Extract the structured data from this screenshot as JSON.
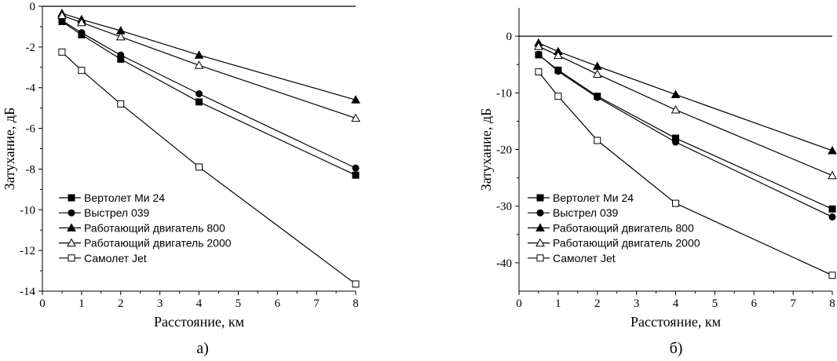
{
  "chart_data": [
    {
      "type": "line",
      "panel_label": "а)",
      "xlabel": "Расстояние, км",
      "ylabel": "Затухание, дБ",
      "xlim": [
        0,
        8
      ],
      "ylim": [
        -14,
        0
      ],
      "xticks": [
        "0",
        "1",
        "2",
        "3",
        "4",
        "5",
        "6",
        "7",
        "8"
      ],
      "yticks": [
        "0",
        "-2",
        "-4",
        "-6",
        "-8",
        "-10",
        "-12",
        "-14"
      ],
      "zero_line": true,
      "legend_position": "lower-left",
      "x": [
        0.5,
        1,
        2,
        4,
        8
      ],
      "series": [
        {
          "name": "Вертолет Ми 24",
          "marker": "filled-square",
          "values": [
            -0.75,
            -1.4,
            -2.6,
            -4.7,
            -8.3
          ]
        },
        {
          "name": "Выстрел 039",
          "marker": "filled-circle",
          "values": [
            -0.7,
            -1.3,
            -2.4,
            -4.3,
            -7.95
          ]
        },
        {
          "name": "Работающий двигатель 800",
          "marker": "filled-triangle",
          "values": [
            -0.35,
            -0.65,
            -1.2,
            -2.4,
            -4.6
          ]
        },
        {
          "name": "Работающий двигатель 2000",
          "marker": "open-triangle",
          "values": [
            -0.45,
            -0.8,
            -1.5,
            -2.9,
            -5.5
          ]
        },
        {
          "name": "Самолет Jet",
          "marker": "open-square",
          "values": [
            -2.25,
            -3.15,
            -4.8,
            -7.9,
            -13.65
          ]
        }
      ]
    },
    {
      "type": "line",
      "panel_label": "б)",
      "xlabel": "Расстояние, км",
      "ylabel": "Затухание, дБ",
      "xlim": [
        0,
        8
      ],
      "ylim": [
        -45,
        5
      ],
      "xticks": [
        "0",
        "1",
        "2",
        "3",
        "4",
        "5",
        "6",
        "7",
        "8"
      ],
      "yticks": [
        "0",
        "-10",
        "-20",
        "-30",
        "-40"
      ],
      "zero_line": true,
      "legend_position": "lower-left",
      "x": [
        0.5,
        1,
        2,
        4,
        8
      ],
      "series": [
        {
          "name": "Вертолет Ми 24",
          "marker": "filled-square",
          "values": [
            -3.3,
            -6.0,
            -10.6,
            -18.0,
            -30.5
          ]
        },
        {
          "name": "Выстрел 039",
          "marker": "filled-circle",
          "values": [
            -3.2,
            -6.2,
            -10.8,
            -18.7,
            -31.9
          ]
        },
        {
          "name": "Работающий двигатель 800",
          "marker": "filled-triangle",
          "values": [
            -1.2,
            -2.7,
            -5.3,
            -10.3,
            -20.2
          ]
        },
        {
          "name": "Работающий двигатель 2000",
          "marker": "open-triangle",
          "values": [
            -1.8,
            -3.4,
            -6.7,
            -13.0,
            -24.6
          ]
        },
        {
          "name": "Самолет Jet",
          "marker": "open-square",
          "values": [
            -6.3,
            -10.6,
            -18.4,
            -29.5,
            -42.2
          ]
        }
      ]
    }
  ]
}
